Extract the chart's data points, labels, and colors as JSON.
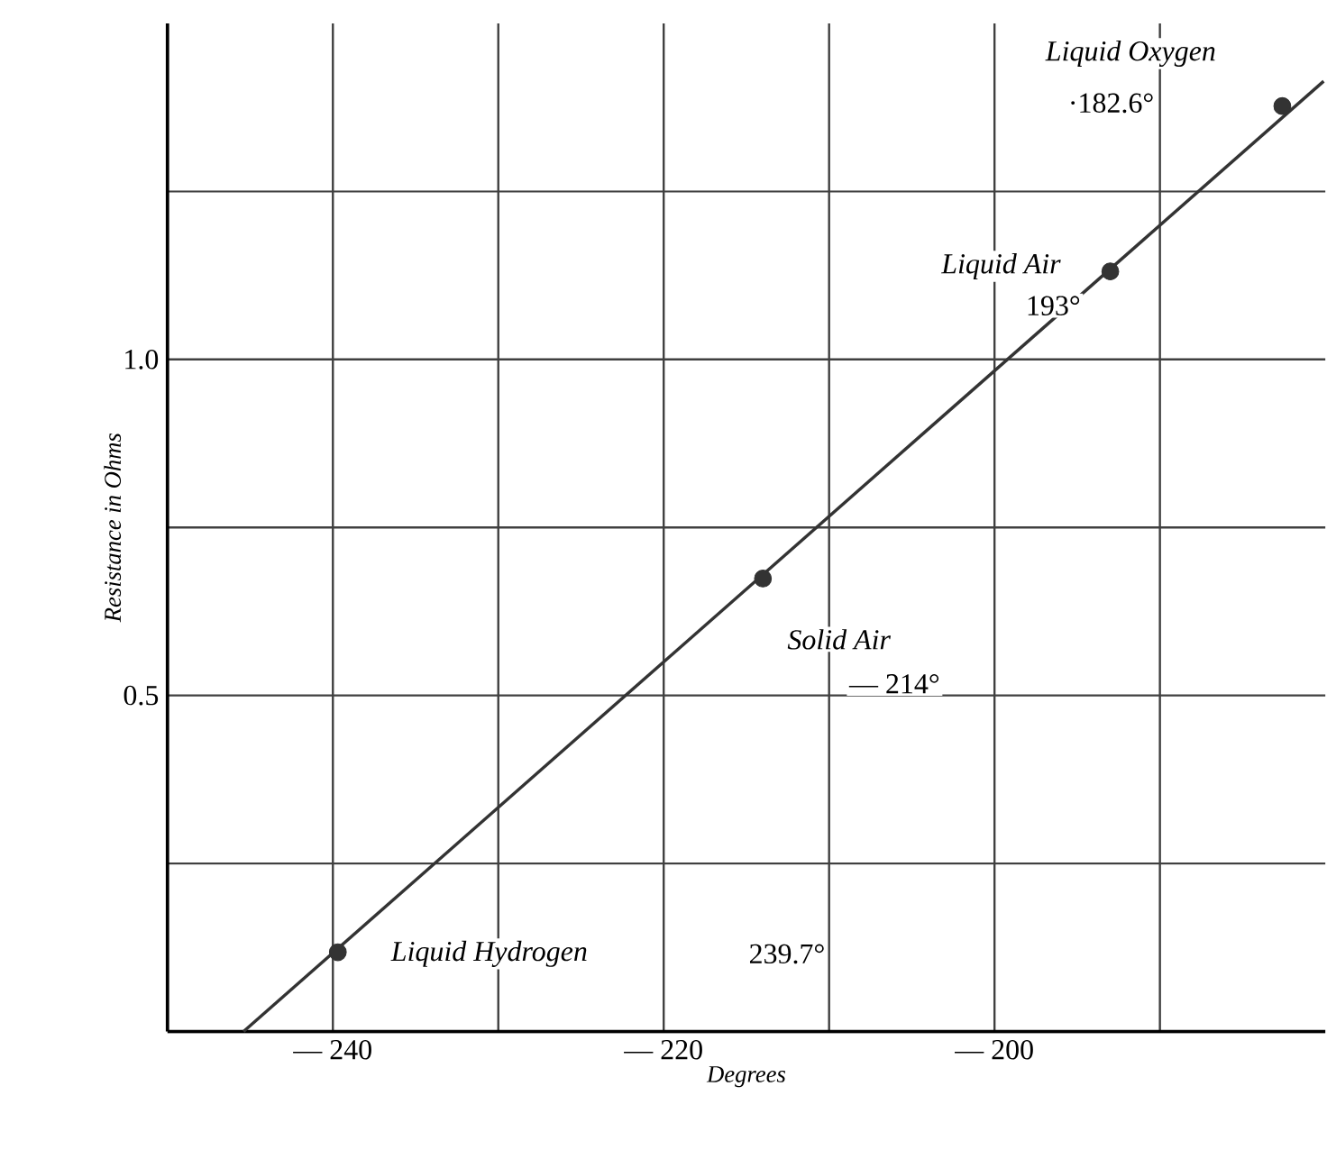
{
  "chart_data": {
    "type": "scatter",
    "xlabel": "Degrees",
    "ylabel": "Resistance in Ohms",
    "xlim": [
      -250,
      -180
    ],
    "ylim": [
      0,
      1.5
    ],
    "xticks": [
      {
        "value": -240,
        "label": "— 240"
      },
      {
        "value": -230,
        "label": null
      },
      {
        "value": -220,
        "label": "— 220"
      },
      {
        "value": -210,
        "label": null
      },
      {
        "value": -200,
        "label": "— 200"
      },
      {
        "value": -190,
        "label": null
      }
    ],
    "yticks": [
      {
        "value": 0.25,
        "label": null
      },
      {
        "value": 0.5,
        "label": "0.5"
      },
      {
        "value": 0.75,
        "label": null
      },
      {
        "value": 1.0,
        "label": "1.0"
      },
      {
        "value": 1.25,
        "label": null
      }
    ],
    "grid": true,
    "series": [
      {
        "type": "line",
        "color": "#333333",
        "x": [
          -245.4,
          -180.1
        ],
        "values": [
          0,
          1.414
        ],
        "marker": "none"
      },
      {
        "color": "#333333",
        "x": [
          -239.7,
          -214,
          -193,
          -182.6
        ],
        "values": [
          0.118,
          0.674,
          1.131,
          1.377
        ],
        "marker": "circle"
      }
    ],
    "annotations": [
      "*Liquid Oxygen*",
      "·182.6°",
      "*Liquid Air*",
      "193°",
      "*Solid Air*",
      "— 214°",
      "*Liquid Hydrogen*",
      "239.7°"
    ]
  }
}
